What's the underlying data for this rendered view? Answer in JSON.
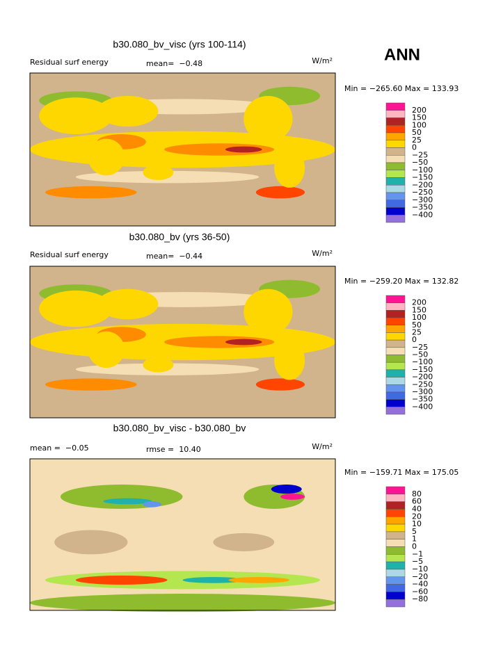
{
  "figure_label": "ANN",
  "panels": [
    {
      "title": "b30.080_bv_visc (yrs 100-114)",
      "left_label": "Residual surf energy",
      "stat_label": "mean=  −0.48",
      "units": "W/m²",
      "range_label": "Min = −265.60 Max = 133.93",
      "colorbar": {
        "labels": [
          "200",
          "150",
          "100",
          "50",
          "25",
          "0",
          "−25",
          "−50",
          "−100",
          "−150",
          "−200",
          "−250",
          "−300",
          "−350",
          "−400"
        ],
        "colors": [
          "#ff1493",
          "#ffb6c1",
          "#b22222",
          "#ff4500",
          "#ffa500",
          "#ffd700",
          "#d2b48c",
          "#f5deb3",
          "#8fbc2f",
          "#b4e650",
          "#20b2aa",
          "#add8e6",
          "#6495ed",
          "#4169e1",
          "#0000cd",
          "#9370db"
        ]
      }
    },
    {
      "title": "b30.080_bv (yrs 36-50)",
      "left_label": "Residual surf energy",
      "stat_label": "mean=  −0.44",
      "units": "W/m²",
      "range_label": "Min = −259.20 Max = 132.82",
      "colorbar": {
        "labels": [
          "200",
          "150",
          "100",
          "50",
          "25",
          "0",
          "−25",
          "−50",
          "−100",
          "−150",
          "−200",
          "−250",
          "−300",
          "−350",
          "−400"
        ],
        "colors": [
          "#ff1493",
          "#ffb6c1",
          "#b22222",
          "#ff4500",
          "#ffa500",
          "#ffd700",
          "#d2b48c",
          "#f5deb3",
          "#8fbc2f",
          "#b4e650",
          "#20b2aa",
          "#add8e6",
          "#6495ed",
          "#4169e1",
          "#0000cd",
          "#9370db"
        ]
      }
    },
    {
      "title": "b30.080_bv_visc - b30.080_bv",
      "left_label": "mean =  −0.05",
      "stat_label": "rmse =  10.40",
      "units": "W/m²",
      "range_label": "Min = −159.71 Max = 175.05",
      "colorbar": {
        "labels": [
          "80",
          "60",
          "40",
          "20",
          "10",
          "5",
          "1",
          "0",
          "−1",
          "−5",
          "−10",
          "−20",
          "−40",
          "−60",
          "−80"
        ],
        "colors": [
          "#ff1493",
          "#ffb6c1",
          "#b22222",
          "#ff4500",
          "#ffa500",
          "#ffd700",
          "#d2b48c",
          "#f5deb3",
          "#8fbc2f",
          "#b4e650",
          "#20b2aa",
          "#add8e6",
          "#6495ed",
          "#4169e1",
          "#0000cd",
          "#9370db"
        ]
      }
    }
  ]
}
